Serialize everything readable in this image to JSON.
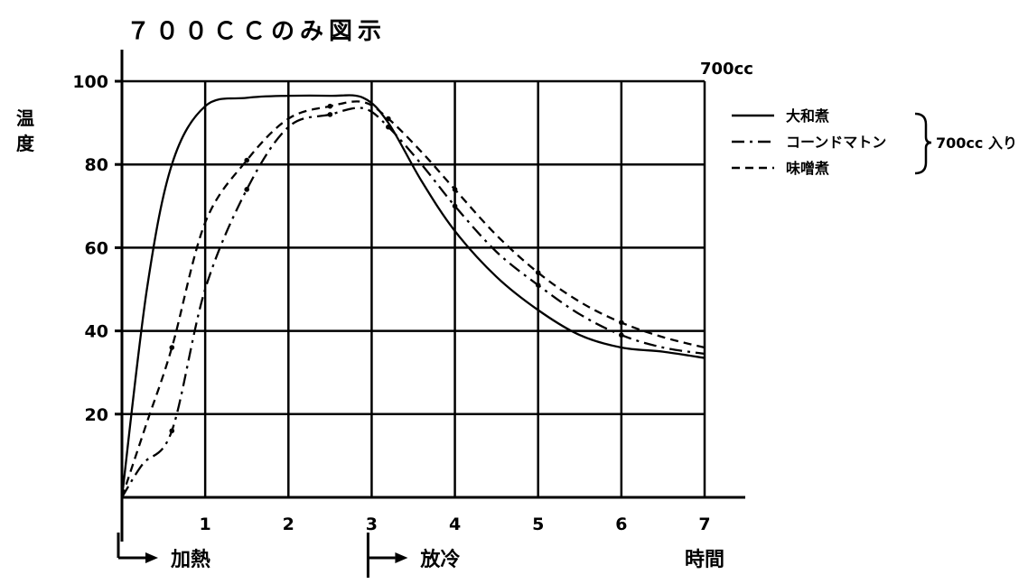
{
  "chart_data": {
    "type": "line",
    "title": "７００ＣＣのみ図示",
    "ylabel": "温度",
    "xlabel": "時間",
    "corner_label": "700cc",
    "xlim": [
      0,
      7
    ],
    "ylim": [
      0,
      100
    ],
    "x_ticks": [
      "1",
      "2",
      "3",
      "4",
      "5",
      "6",
      "7"
    ],
    "y_ticks": [
      "20",
      "40",
      "60",
      "80",
      "100"
    ],
    "grid": true,
    "legend_position": "right",
    "legend_group_label": "700cc 入り",
    "phases": [
      {
        "label": "加熱",
        "start": 0
      },
      {
        "label": "放冷",
        "start": 3
      }
    ],
    "series": [
      {
        "name": "大和煮",
        "style": "solid",
        "x": [
          0,
          0.3,
          0.6,
          1.0,
          1.5,
          2.0,
          2.5,
          2.9,
          3.2,
          3.6,
          4.0,
          4.5,
          5.0,
          5.5,
          6.0,
          6.5,
          7.0
        ],
        "y": [
          0,
          50,
          80,
          94,
          96,
          96.5,
          96.5,
          96,
          90,
          76,
          64,
          53,
          45,
          39,
          36,
          35,
          33.5
        ]
      },
      {
        "name": "コーンドマトン",
        "style": "dashdot",
        "x": [
          0,
          0.25,
          0.6,
          1.0,
          1.5,
          2.0,
          2.5,
          2.9,
          3.2,
          3.6,
          4.0,
          4.5,
          5.0,
          5.5,
          6.0,
          6.5,
          7.0
        ],
        "y": [
          0,
          8,
          16,
          50,
          74,
          89,
          92,
          93.5,
          89,
          80,
          70,
          59,
          51,
          44,
          39,
          36,
          34.5
        ]
      },
      {
        "name": "味噌煮",
        "style": "dashed",
        "x": [
          0,
          0.3,
          0.6,
          1.0,
          1.5,
          2.0,
          2.5,
          2.9,
          3.2,
          3.6,
          4.0,
          4.5,
          5.0,
          5.5,
          6.0,
          6.5,
          7.0
        ],
        "y": [
          0,
          18,
          36,
          66,
          81,
          91,
          94,
          95,
          91,
          83,
          74,
          63,
          54,
          47,
          42,
          38.5,
          36
        ]
      }
    ]
  }
}
